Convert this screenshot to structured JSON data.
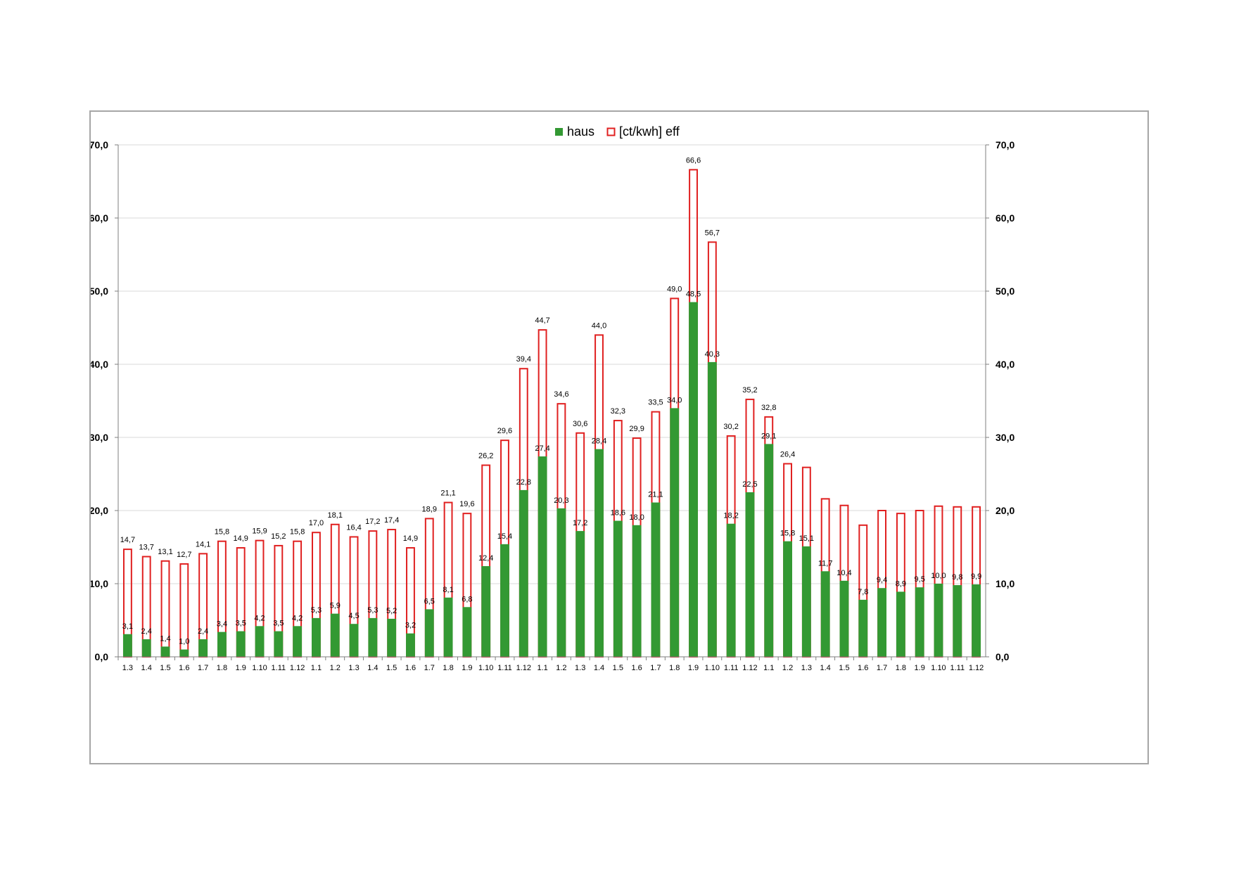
{
  "chart_data": {
    "type": "bar",
    "categories": [
      "1.3",
      "1.4",
      "1.5",
      "1.6",
      "1.7",
      "1.8",
      "1.9",
      "1.10",
      "1.11",
      "1.12",
      "1.1",
      "1.2",
      "1.3",
      "1.4",
      "1.5",
      "1.6",
      "1.7",
      "1.8",
      "1.9",
      "1.10",
      "1.11",
      "1.12",
      "1.1",
      "1.2",
      "1.3",
      "1.4",
      "1.5",
      "1.6",
      "1.7",
      "1.8",
      "1.9",
      "1.10",
      "1.11",
      "1.12",
      "1.1",
      "1.2",
      "1.3",
      "1.4",
      "1.5",
      "1.6",
      "1.7",
      "1.8",
      "1.9",
      "1.10",
      "1.11",
      "1.12"
    ],
    "series": [
      {
        "name": "haus",
        "color": "#339933",
        "style": "filled",
        "values": [
          3.1,
          2.4,
          1.4,
          1.0,
          2.4,
          3.4,
          3.5,
          4.2,
          3.5,
          4.2,
          5.3,
          5.9,
          4.5,
          5.3,
          5.2,
          3.2,
          6.5,
          8.1,
          6.8,
          12.4,
          15.4,
          22.8,
          27.4,
          20.3,
          17.2,
          28.4,
          18.6,
          18.0,
          21.1,
          34.0,
          48.5,
          40.3,
          18.2,
          22.5,
          29.1,
          15.8,
          15.1,
          11.7,
          10.4,
          7.8,
          9.4,
          8.9,
          9.5,
          10.0,
          9.8,
          9.9
        ],
        "labels": [
          "3,1",
          "2,4",
          "1,4",
          "1,0",
          "2,4",
          "3,4",
          "3,5",
          "4,2",
          "3,5",
          "4,2",
          "5,3",
          "5,9",
          "4,5",
          "5,3",
          "5,2",
          "3,2",
          "6,5",
          "8,1",
          "6,8",
          "12,4",
          "15,4",
          "22,8",
          "27,4",
          "20,3",
          "17,2",
          "28,4",
          "18,6",
          "18,0",
          "21,1",
          "34,0",
          "48,5",
          "40,3",
          "18,2",
          "22,5",
          "29,1",
          "15,8",
          "15,1",
          "11,7",
          "10,4",
          "7,8",
          "9,4",
          "8,9",
          "9,5",
          "10,0",
          "9,8",
          "9,9"
        ]
      },
      {
        "name": "[ct/kwh] eff",
        "color": "#e02020",
        "style": "outline",
        "values": [
          14.7,
          13.7,
          13.1,
          12.7,
          14.1,
          15.8,
          14.9,
          15.9,
          15.2,
          15.8,
          17.0,
          18.1,
          16.4,
          17.2,
          17.4,
          14.9,
          18.9,
          21.1,
          19.6,
          26.2,
          29.6,
          39.4,
          44.7,
          34.6,
          30.6,
          44.0,
          32.3,
          29.9,
          33.5,
          49.0,
          66.6,
          56.7,
          30.2,
          35.2,
          32.8,
          26.4,
          25.9,
          21.6,
          20.7,
          18.0,
          20.0,
          19.6,
          20.0,
          20.6,
          20.5,
          20.5
        ],
        "labels": [
          "14,7",
          "13,7",
          "13,1",
          "12,7",
          "14,1",
          "15,8",
          "14,9",
          "15,9",
          "15,2",
          "15,8",
          "17,0",
          "18,1",
          "16,4",
          "17,2",
          "17,4",
          "14,9",
          "18,9",
          "21,1",
          "19,6",
          "26,2",
          "29,6",
          "39,4",
          "44,7",
          "34,6",
          "30,6",
          "44,0",
          "32,3",
          "29,9",
          "33,5",
          "49,0",
          "66,6",
          "56,7",
          "30,2",
          "35,2",
          "32,8",
          "26,4",
          "",
          "",
          "",
          "",
          "",
          "",
          "",
          "",
          "",
          ""
        ]
      }
    ],
    "ylim": [
      0,
      70
    ],
    "yticks": [
      "0,0",
      "10,0",
      "20,0",
      "30,0",
      "40,0",
      "50,0",
      "60,0",
      "70,0"
    ],
    "secondary_axis": true,
    "grid": true,
    "legend": "top-center",
    "title": "",
    "xlabel": "",
    "ylabel": ""
  }
}
